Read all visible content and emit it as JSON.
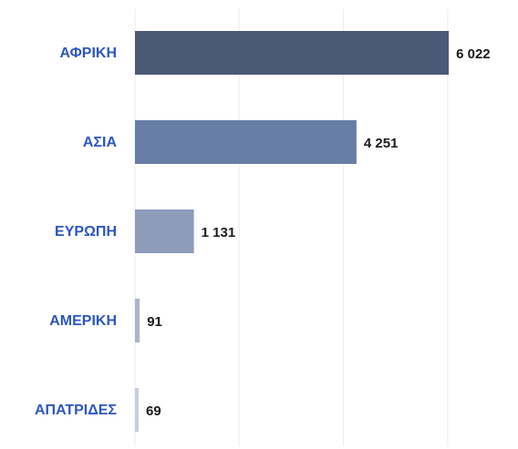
{
  "chart_data": {
    "type": "bar",
    "orientation": "horizontal",
    "categories": [
      "ΑΦΡΙΚΗ",
      "ΑΣΙΑ",
      "ΕΥΡΩΠΗ",
      "ΑΜΕΡΙΚΗ",
      "ΑΠΑΤΡΙΔΕΣ"
    ],
    "values": [
      6022,
      4251,
      1131,
      91,
      69
    ],
    "value_labels": [
      "6 022",
      "4 251",
      "1 131",
      "91",
      "69"
    ],
    "colors": [
      "#4b5876",
      "#687ea6",
      "#8d9cbb",
      "#aab5cc",
      "#c5cedf"
    ],
    "xlim": [
      0,
      7000
    ],
    "xticks": [
      0,
      2000,
      4000,
      6000
    ],
    "grid": true
  }
}
